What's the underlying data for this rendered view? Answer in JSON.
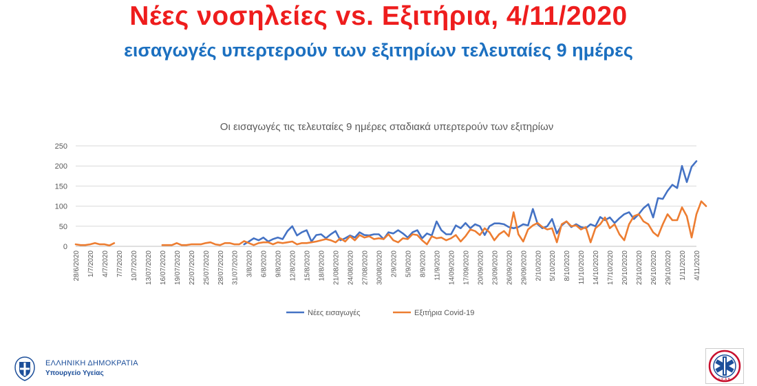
{
  "header": {
    "title": "Νέες νοσηλείες vs. Εξιτήρια, 4/11/2020",
    "subtitle": "εισαγωγές υπερτερούν των εξιτηρίων τελευταίες 9 ημέρες"
  },
  "footer": {
    "org_line1": "ΕΛΛΗΝΙΚΗ ΔΗΜΟΚΡΑΤΙΑ",
    "org_line2": "Υπουργείο Υγείας",
    "logo_right": "Ε.Κ.Α.Β."
  },
  "chart_data": {
    "type": "line",
    "title": "Οι εισαγωγές τις τελευταίες 9 ημέρες σταδιακά υπερτερούν των εξιτηρίων",
    "xlabel": "",
    "ylabel": "",
    "ylim": [
      0,
      250
    ],
    "yticks": [
      0,
      50,
      100,
      150,
      200,
      250
    ],
    "grid": true,
    "legend_position": "bottom",
    "colors": {
      "Νέες εισαγωγές": "#4472c4",
      "Εξιτήρια Covid-19": "#ed7d31"
    },
    "xtick_labels": [
      "28/6/2020",
      "1/7/2020",
      "4/7/2020",
      "7/7/2020",
      "10/7/2020",
      "13/07/2020",
      "16/07/2020",
      "19/07/2020",
      "22/07/2020",
      "25/07/2020",
      "28/07/2020",
      "31/07/2020",
      "3/8/2020",
      "6/8/2020",
      "9/8/2020",
      "12/8/2020",
      "15/8/2020",
      "18/8/2020",
      "21/08/2020",
      "24/08/2020",
      "27/08/2020",
      "30/08/2020",
      "2/9/2020",
      "5/9/2020",
      "8/9/2020",
      "11/9/2020",
      "14/09/2020",
      "17/09/2020",
      "20/09/2020",
      "23/09/2020",
      "26/09/2020",
      "29/09/2020",
      "2/10/2020",
      "5/10/2020",
      "8/10/2020",
      "11/10/2020",
      "14/10/2020",
      "17/10/2020",
      "20/10/2020",
      "23/10/2020",
      "26/10/2020",
      "29/10/2020",
      "1/11/2020",
      "4/11/2020"
    ],
    "series": [
      {
        "name": "Νέες εισαγωγές",
        "values": [
          null,
          null,
          null,
          null,
          null,
          null,
          null,
          null,
          null,
          null,
          null,
          null,
          null,
          null,
          null,
          null,
          null,
          null,
          null,
          null,
          null,
          null,
          null,
          null,
          null,
          null,
          null,
          null,
          null,
          null,
          null,
          null,
          null,
          null,
          null,
          5,
          12,
          20,
          15,
          22,
          12,
          18,
          22,
          18,
          38,
          50,
          27,
          35,
          40,
          12,
          28,
          30,
          20,
          30,
          38,
          15,
          20,
          27,
          22,
          35,
          28,
          27,
          30,
          30,
          18,
          35,
          32,
          40,
          32,
          22,
          35,
          40,
          20,
          32,
          27,
          62,
          40,
          30,
          30,
          52,
          45,
          58,
          45,
          55,
          50,
          28,
          50,
          57,
          57,
          55,
          48,
          45,
          48,
          55,
          52,
          93,
          55,
          45,
          50,
          68,
          32,
          52,
          62,
          48,
          55,
          48,
          45,
          55,
          50,
          73,
          65,
          72,
          58,
          70,
          80,
          85,
          68,
          80,
          95,
          105,
          72,
          120,
          118,
          138,
          153,
          145,
          200,
          160,
          198,
          212
        ]
      },
      {
        "name": "Εξιτήρια Covid-19",
        "values": [
          5,
          3,
          3,
          5,
          8,
          5,
          5,
          2,
          8,
          null,
          null,
          null,
          null,
          null,
          null,
          null,
          null,
          null,
          3,
          3,
          3,
          8,
          3,
          3,
          5,
          5,
          5,
          8,
          10,
          5,
          3,
          8,
          8,
          5,
          5,
          13,
          8,
          3,
          8,
          10,
          10,
          5,
          10,
          8,
          10,
          12,
          5,
          8,
          8,
          10,
          12,
          15,
          18,
          15,
          10,
          20,
          12,
          25,
          15,
          28,
          22,
          25,
          18,
          20,
          18,
          30,
          15,
          10,
          20,
          18,
          30,
          28,
          15,
          5,
          25,
          20,
          22,
          15,
          20,
          28,
          12,
          25,
          42,
          38,
          28,
          45,
          35,
          15,
          30,
          38,
          25,
          85,
          30,
          12,
          42,
          52,
          58,
          48,
          42,
          45,
          10,
          55,
          62,
          50,
          52,
          42,
          48,
          10,
          45,
          55,
          72,
          45,
          55,
          30,
          15,
          55,
          75,
          80,
          62,
          55,
          35,
          25,
          55,
          80,
          65,
          65,
          97,
          75,
          22,
          80,
          112,
          100
        ]
      }
    ]
  }
}
